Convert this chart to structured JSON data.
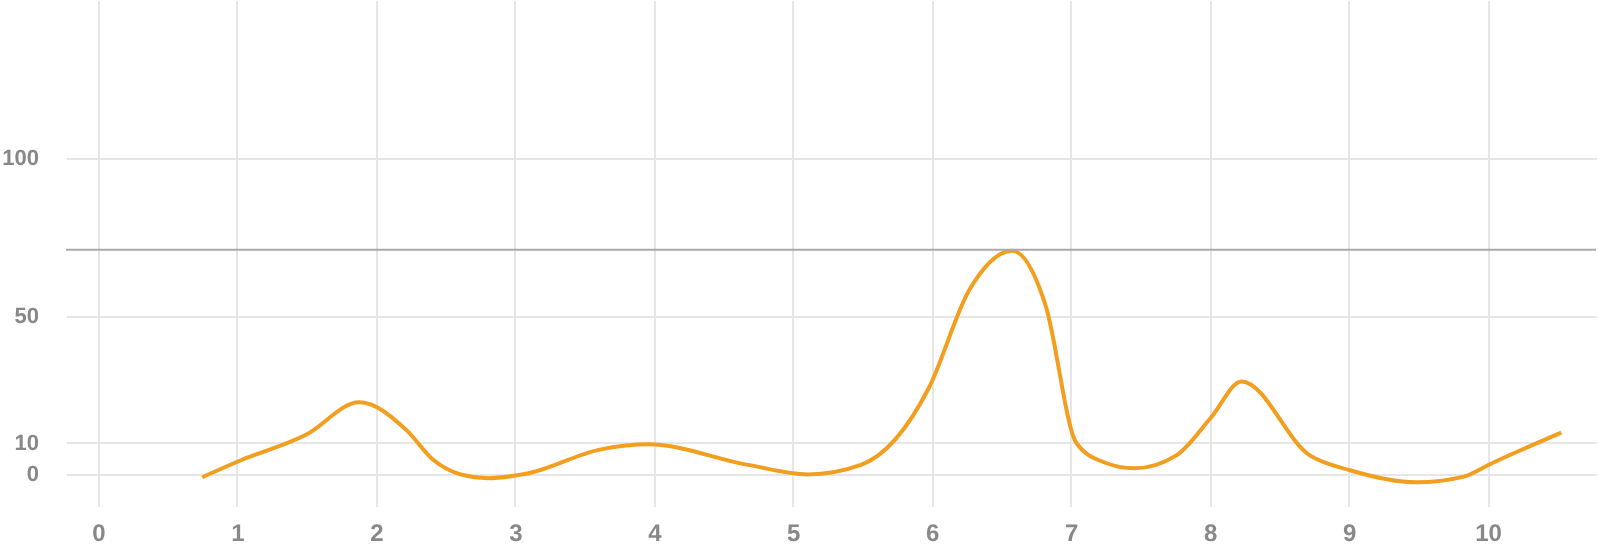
{
  "chart_data": {
    "type": "line",
    "x": [
      0.75,
      1.02,
      1.5,
      1.88,
      2.22,
      2.41,
      2.61,
      2.81,
      3.09,
      3.62,
      3.96,
      4.68,
      5.11,
      5.49,
      5.98,
      6.27,
      6.58,
      6.82,
      7.04,
      7.23,
      7.46,
      7.76,
      8.01,
      8.23,
      8.72,
      9.01,
      9.49,
      9.83,
      10.02,
      10.53
    ],
    "series": [
      {
        "color": "#f29e1f",
        "values": [
          -0.9,
          4.3,
          12.6,
          22.8,
          14,
          4.7,
          0,
          -1.2,
          0.3,
          7.9,
          9.5,
          3,
          0,
          3,
          27.4,
          58.3,
          70.7,
          53.3,
          10,
          4,
          1.9,
          6,
          18,
          29.4,
          6,
          1.3,
          -2.5,
          -0.7,
          3.3,
          13.2
        ]
      }
    ],
    "xlim": [
      -0.23,
      10.78
    ],
    "xticks": [
      0,
      1,
      2,
      3,
      4,
      5,
      6,
      7,
      8,
      9,
      10
    ],
    "ylim": [
      -10,
      150
    ],
    "yticks": [
      0,
      10,
      50,
      100
    ],
    "ref_lines": [
      {
        "axis": "y",
        "value": 71,
        "color": "#aaaaaa"
      }
    ],
    "grid": true,
    "marker": "none",
    "line_style": "solid"
  }
}
